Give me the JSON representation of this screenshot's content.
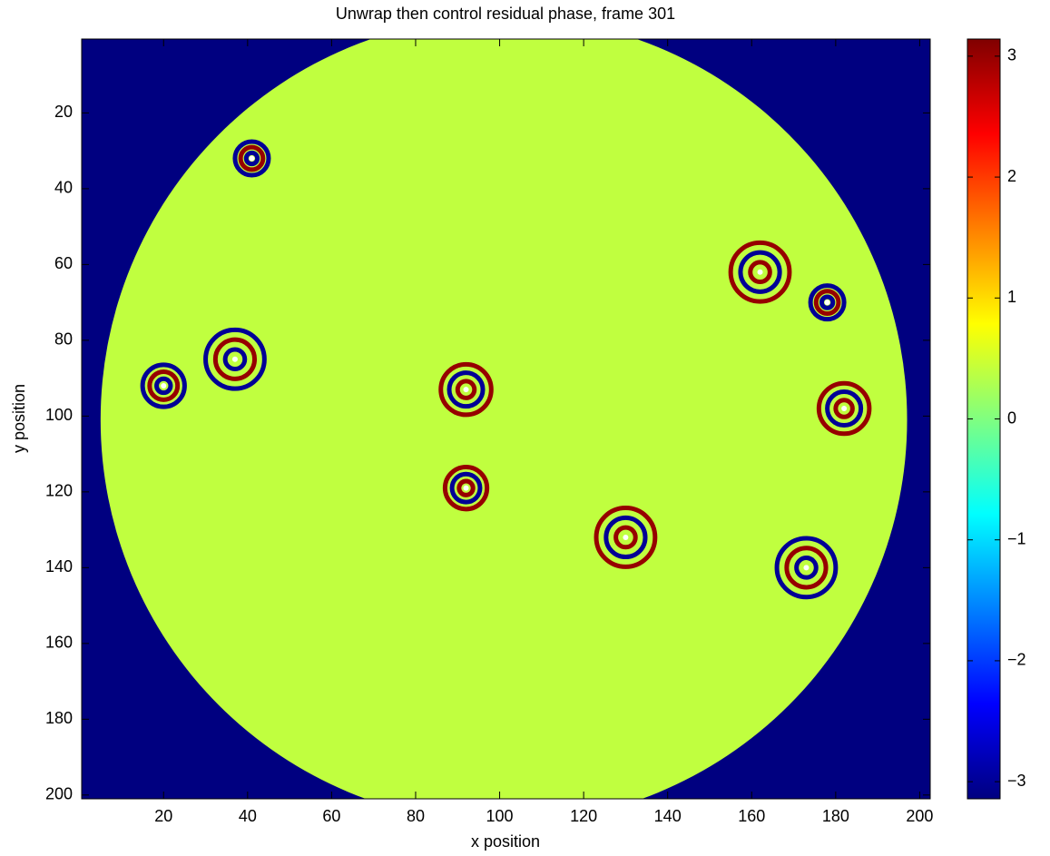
{
  "chart_data": {
    "type": "heatmap",
    "title": "Unwrap then control residual phase, frame 301",
    "x_label": "x position",
    "y_label": "y position",
    "xlim": [
      0.5,
      202.5
    ],
    "ylim": [
      0.5,
      201
    ],
    "xticks": [
      20,
      40,
      60,
      80,
      100,
      120,
      140,
      160,
      180,
      200
    ],
    "yticks": [
      20,
      40,
      60,
      80,
      100,
      120,
      140,
      160,
      180,
      200
    ],
    "y_reversed": true,
    "colormap": "jet",
    "clim": [
      -3.1416,
      3.1416
    ],
    "cticks": [
      -3,
      -2,
      -1,
      0,
      1,
      2,
      3
    ],
    "background_value": -3.14,
    "disk": {
      "x": 101,
      "y": 101,
      "r": 96,
      "value": 0.4
    },
    "rings": [
      {
        "x": 92,
        "y": 93,
        "r": 6,
        "value": 3.0
      },
      {
        "x": 37,
        "y": 85,
        "r": 7,
        "value": -3.0
      },
      {
        "x": 162,
        "y": 62,
        "r": 7,
        "value": 3.0
      },
      {
        "x": 173,
        "y": 140,
        "r": 7,
        "value": -3.0
      },
      {
        "x": 130,
        "y": 132,
        "r": 7,
        "value": 3.0
      },
      {
        "x": 20,
        "y": 92,
        "r": 5,
        "value": -3.0
      },
      {
        "x": 182,
        "y": 98,
        "r": 6,
        "value": 3.0
      },
      {
        "x": 41,
        "y": 32,
        "r": 4,
        "value": -3.0
      },
      {
        "x": 92,
        "y": 119,
        "r": 5,
        "value": 3.0
      },
      {
        "x": 178,
        "y": 70,
        "r": 4,
        "value": -3.0
      }
    ]
  }
}
